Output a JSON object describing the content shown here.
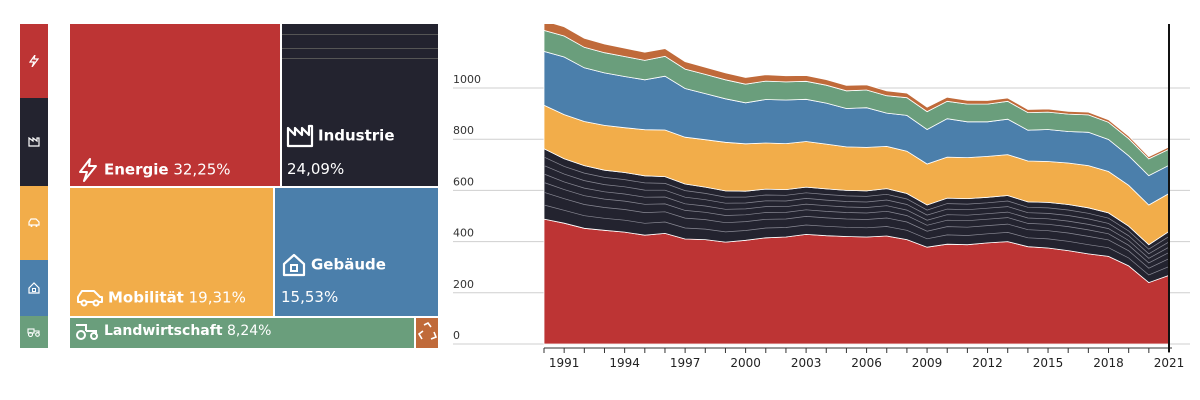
{
  "colors": {
    "energie": "#bd3434",
    "industrie": "#23232f",
    "mobilitaet": "#f2ad4a",
    "gebaeude": "#4b7fab",
    "landwirtschaft": "#6a9e7c",
    "abfall": "#c06a3a"
  },
  "sidebar": [
    {
      "icon": "lightning-icon",
      "color": "#bd3434"
    },
    {
      "icon": "factory-icon",
      "color": "#23232f"
    },
    {
      "icon": "car-icon",
      "color": "#f2ad4a"
    },
    {
      "icon": "house-icon",
      "color": "#4b7fab"
    },
    {
      "icon": "tractor-icon",
      "color": "#6a9e7c"
    }
  ],
  "treemap": {
    "energie": {
      "label": "Energie",
      "pct": "32,25%",
      "icon": "lightning-icon"
    },
    "industrie": {
      "label": "Industrie",
      "pct": "24,09%",
      "icon": "factory-icon"
    },
    "mobilitaet": {
      "label": "Mobilität",
      "pct": "19,31%",
      "icon": "car-icon"
    },
    "gebaeude": {
      "label": "Gebäude",
      "pct": "15,53%",
      "icon": "house-icon"
    },
    "landwirtschaft": {
      "label": "Landwirtschaft",
      "pct": "8,24%",
      "icon": "tractor-icon"
    },
    "abfall": {
      "icon": "recycle-icon"
    }
  },
  "chart_data": {
    "type": "area",
    "stacked": true,
    "x": [
      1990,
      1991,
      1992,
      1993,
      1994,
      1995,
      1996,
      1997,
      1998,
      1999,
      2000,
      2001,
      2002,
      2003,
      2004,
      2005,
      2006,
      2007,
      2008,
      2009,
      2010,
      2011,
      2012,
      2013,
      2014,
      2015,
      2016,
      2017,
      2018,
      2019,
      2020,
      2021
    ],
    "xticks": [
      "1991",
      "1994",
      "1997",
      "2000",
      "2003",
      "2006",
      "2009",
      "2012",
      "2015",
      "2018",
      "2021"
    ],
    "yticks": [
      "0",
      "200",
      "400",
      "600",
      "800",
      "1000"
    ],
    "ylim": [
      0,
      1250
    ],
    "series": [
      {
        "key": "energie",
        "color": "#bd3434",
        "values": [
          488,
          472,
          452,
          444,
          437,
          425,
          432,
          410,
          408,
          398,
          405,
          415,
          418,
          428,
          423,
          420,
          418,
          422,
          408,
          378,
          390,
          388,
          395,
          400,
          380,
          375,
          365,
          352,
          342,
          305,
          240,
          268
        ]
      },
      {
        "key": "industrie",
        "color": "#23232f",
        "values": [
          275,
          252,
          245,
          235,
          233,
          232,
          222,
          215,
          205,
          200,
          192,
          190,
          185,
          185,
          183,
          180,
          180,
          185,
          180,
          165,
          180,
          180,
          178,
          180,
          175,
          178,
          180,
          180,
          170,
          155,
          148,
          172
        ]
      },
      {
        "key": "mobilitaet",
        "color": "#f2ad4a",
        "values": [
          170,
          172,
          172,
          175,
          175,
          180,
          182,
          183,
          185,
          190,
          185,
          180,
          180,
          178,
          175,
          170,
          170,
          165,
          165,
          160,
          160,
          160,
          160,
          160,
          160,
          160,
          162,
          165,
          162,
          160,
          155,
          148
        ]
      },
      {
        "key": "gebaeude",
        "color": "#4b7fab",
        "values": [
          210,
          225,
          210,
          205,
          200,
          195,
          210,
          190,
          180,
          170,
          160,
          170,
          170,
          165,
          160,
          150,
          155,
          130,
          140,
          135,
          150,
          140,
          135,
          138,
          120,
          125,
          123,
          130,
          125,
          115,
          115,
          110
        ]
      },
      {
        "key": "landwirtschaft",
        "color": "#6a9e7c",
        "values": [
          82,
          82,
          80,
          79,
          78,
          76,
          78,
          76,
          75,
          74,
          73,
          72,
          71,
          70,
          70,
          69,
          69,
          68,
          69,
          70,
          68,
          69,
          69,
          70,
          69,
          68,
          68,
          68,
          67,
          67,
          65,
          63
        ]
      },
      {
        "key": "abfall",
        "color": "#c06a3a",
        "values": [
          38,
          36,
          35,
          34,
          33,
          32,
          30,
          29,
          28,
          27,
          26,
          25,
          24,
          23,
          22,
          21,
          20,
          19,
          18,
          17,
          16,
          15,
          14,
          13,
          12,
          12,
          11,
          11,
          10,
          10,
          9,
          9
        ]
      }
    ]
  }
}
